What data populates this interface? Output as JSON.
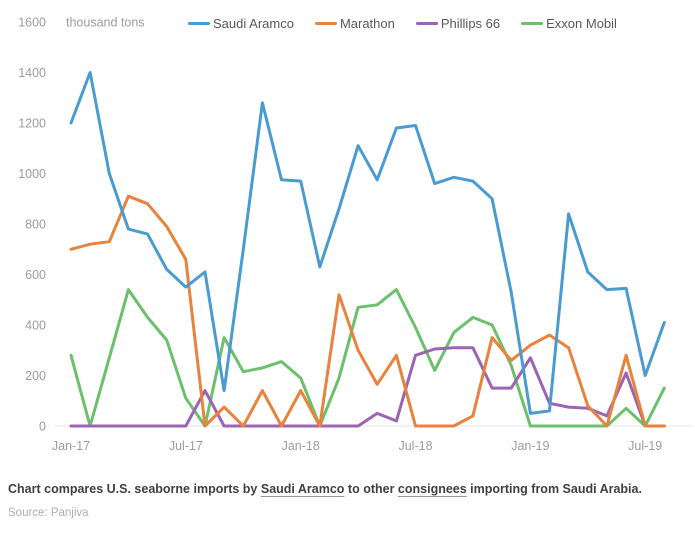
{
  "header": {
    "units_label": "thousand tons"
  },
  "legend": {
    "items": [
      {
        "label": "Saudi Aramco",
        "color": "#4a9bd1"
      },
      {
        "label": "Marathon",
        "color": "#e8823c"
      },
      {
        "label": "Phillips 66",
        "color": "#9c64b4"
      },
      {
        "label": "Exxon Mobil",
        "color": "#6cc06c"
      }
    ]
  },
  "chart_data": {
    "type": "line",
    "title": "",
    "xlabel": "",
    "ylabel": "thousand tons",
    "ylim": [
      0,
      1600
    ],
    "y_ticks": [
      0,
      200,
      400,
      600,
      800,
      1000,
      1200,
      1400,
      1600
    ],
    "grid": false,
    "legend_position": "top",
    "x": [
      "Jan-17",
      "Feb-17",
      "Mar-17",
      "Apr-17",
      "May-17",
      "Jun-17",
      "Jul-17",
      "Aug-17",
      "Sep-17",
      "Oct-17",
      "Nov-17",
      "Dec-17",
      "Jan-18",
      "Feb-18",
      "Mar-18",
      "Apr-18",
      "May-18",
      "Jun-18",
      "Jul-18",
      "Aug-18",
      "Sep-18",
      "Oct-18",
      "Nov-18",
      "Dec-18",
      "Jan-19",
      "Feb-19",
      "Mar-19",
      "Apr-19",
      "May-19",
      "Jun-19",
      "Jul-19",
      "Aug-19"
    ],
    "x_tick_labels": [
      "Jan-17",
      "Jul-17",
      "Jan-18",
      "Jul-18",
      "Jan-19",
      "Jul-19"
    ],
    "x_tick_indices": [
      0,
      6,
      12,
      18,
      24,
      30
    ],
    "series": [
      {
        "name": "Saudi Aramco",
        "color": "#4a9bd1",
        "values": [
          1200,
          1400,
          1000,
          780,
          760,
          620,
          550,
          610,
          140,
          700,
          1280,
          975,
          970,
          630,
          860,
          1110,
          975,
          1180,
          1190,
          960,
          985,
          970,
          900,
          530,
          50,
          60,
          840,
          610,
          540,
          545,
          200,
          410
        ]
      },
      {
        "name": "Marathon",
        "color": "#e8823c",
        "values": [
          700,
          720,
          730,
          910,
          880,
          790,
          660,
          0,
          75,
          0,
          140,
          0,
          140,
          0,
          520,
          300,
          165,
          280,
          0,
          0,
          0,
          40,
          350,
          260,
          320,
          360,
          310,
          80,
          0,
          280,
          0,
          0
        ]
      },
      {
        "name": "Phillips 66",
        "color": "#9c64b4",
        "values": [
          0,
          0,
          0,
          0,
          0,
          0,
          0,
          140,
          0,
          0,
          0,
          0,
          0,
          0,
          0,
          0,
          50,
          20,
          280,
          305,
          310,
          310,
          150,
          150,
          270,
          90,
          75,
          70,
          40,
          210,
          0,
          0
        ]
      },
      {
        "name": "Exxon Mobil",
        "color": "#6cc06c",
        "values": [
          280,
          0,
          270,
          540,
          430,
          340,
          110,
          0,
          350,
          215,
          230,
          255,
          190,
          0,
          190,
          470,
          480,
          540,
          390,
          220,
          370,
          430,
          400,
          240,
          0,
          0,
          0,
          0,
          0,
          70,
          0,
          150
        ]
      }
    ]
  },
  "caption": {
    "part1": "Chart compares U.S. seaborne imports by ",
    "link1": "Saudi Aramco",
    "part2": " to other ",
    "link2": "consignees",
    "part3": " importing from Saudi Arabia."
  },
  "source": "Source: Panjiva"
}
